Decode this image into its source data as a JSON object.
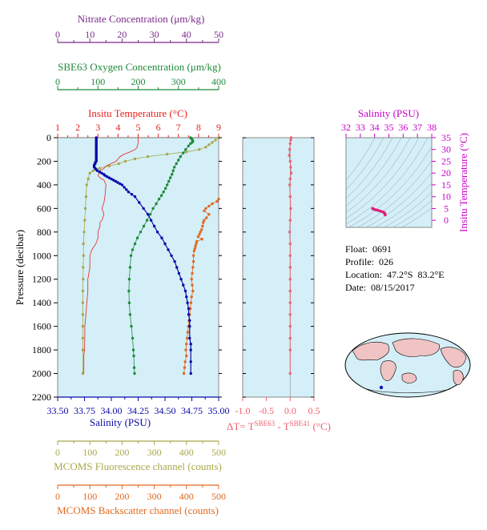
{
  "colors": {
    "nitrate": "#7a2a8a",
    "oxygen": "#1f8a3a",
    "temperature": "#e8221c",
    "salinity": "#0a0aa8",
    "fluorescence": "#a8a84a",
    "backscatter": "#e06a20",
    "delta": "#f06070",
    "ts_axis": "#cc00cc",
    "panel_bg": "#d4eff8"
  },
  "icons": [
    "world-map"
  ],
  "float_info": {
    "float": "Float:  0691",
    "profile": "Profile:  026",
    "location": "Location:  47.2°S  83.2°E",
    "date": "Date:  08/15/2017"
  },
  "chart_data": [
    {
      "type": "line",
      "panel": "main-profile",
      "y_axis": {
        "label": "Pressure (decibar)",
        "range": [
          0,
          2200
        ],
        "ticks": [
          0,
          200,
          400,
          600,
          800,
          1000,
          1200,
          1400,
          1600,
          1800,
          2000,
          2200
        ]
      },
      "axes": {
        "nitrate": {
          "label": "Nitrate Concentration (μm/kg)",
          "range": [
            0,
            50
          ],
          "ticks": [
            0,
            10,
            20,
            30,
            40,
            50
          ]
        },
        "oxygen": {
          "label": "SBE63 Oxygen Concentration (μm/kg)",
          "range": [
            0,
            400
          ],
          "ticks": [
            0,
            100,
            200,
            300,
            400
          ]
        },
        "temperature": {
          "label": "Insitu Temperature (°C)",
          "range": [
            1,
            9
          ],
          "ticks": [
            1,
            2,
            3,
            4,
            5,
            6,
            7,
            8,
            9
          ]
        },
        "salinity": {
          "label": "Salinity (PSU)",
          "range": [
            33.5,
            35.0
          ],
          "ticks": [
            "33.50",
            "33.75",
            "34.00",
            "34.25",
            "34.50",
            "34.75",
            "35.00"
          ]
        },
        "fluorescence": {
          "label": "MCOMS Fluorescence channel (counts)",
          "range": [
            0,
            500
          ],
          "ticks": [
            0,
            100,
            200,
            300,
            400,
            500
          ]
        },
        "backscatter": {
          "label": "MCOMS Backscatter channel (counts)",
          "range": [
            0,
            500
          ],
          "ticks": [
            0,
            100,
            200,
            300,
            400,
            500
          ]
        }
      },
      "series": [
        {
          "name": "Salinity (PSU)",
          "axis": "salinity",
          "markers": true,
          "x": [
            33.86,
            33.86,
            33.86,
            33.86,
            33.86,
            33.86,
            33.86,
            33.86,
            33.86,
            33.86,
            33.86,
            33.86,
            33.86,
            33.86,
            33.86,
            33.86,
            33.86,
            33.86,
            33.86,
            33.86,
            33.86,
            33.85,
            33.85,
            33.84,
            33.84,
            33.84,
            33.85,
            33.86,
            33.87,
            33.89,
            33.91,
            33.93,
            33.94,
            33.96,
            33.98,
            34.0,
            34.02,
            34.04,
            34.06,
            34.08,
            34.1,
            34.12,
            34.14,
            34.16,
            34.19,
            34.22,
            34.26,
            34.3,
            34.34,
            34.37,
            34.4,
            34.43,
            34.47,
            34.5,
            34.53,
            34.56,
            34.59,
            34.61,
            34.63,
            34.65,
            34.67,
            34.69,
            34.7,
            34.71,
            34.72,
            34.72,
            34.73,
            34.73,
            34.73,
            34.74,
            34.74,
            34.74,
            34.74
          ],
          "y": [
            0,
            10,
            20,
            30,
            40,
            50,
            60,
            70,
            80,
            90,
            100,
            110,
            120,
            130,
            140,
            150,
            160,
            170,
            180,
            190,
            200,
            210,
            220,
            230,
            240,
            250,
            260,
            270,
            280,
            290,
            300,
            310,
            320,
            330,
            340,
            350,
            360,
            370,
            380,
            390,
            400,
            420,
            440,
            460,
            480,
            500,
            550,
            600,
            650,
            700,
            750,
            800,
            850,
            900,
            950,
            1000,
            1050,
            1100,
            1150,
            1200,
            1250,
            1300,
            1350,
            1400,
            1450,
            1500,
            1550,
            1600,
            1700,
            1750,
            1800,
            1900,
            2000
          ]
        },
        {
          "name": "Insitu Temperature (°C)",
          "axis": "temperature",
          "markers": false,
          "x": [
            5.0,
            5.0,
            4.98,
            4.95,
            4.85,
            4.6,
            4.3,
            4.1,
            4.0,
            3.9,
            3.65,
            3.4,
            3.3,
            3.1,
            3.05,
            3.0,
            3.1,
            3.3,
            3.4,
            3.35,
            3.3,
            3.2,
            3.3,
            3.2,
            3.1,
            3.1,
            3.0,
            3.0,
            2.9,
            2.7,
            2.6,
            2.6,
            2.5,
            2.5,
            2.45,
            2.4,
            2.35,
            2.35,
            2.33,
            2.3,
            2.3,
            2.3,
            2.3
          ],
          "y": [
            0,
            40,
            60,
            80,
            100,
            120,
            140,
            160,
            180,
            200,
            220,
            240,
            260,
            280,
            300,
            320,
            340,
            360,
            400,
            500,
            550,
            600,
            650,
            700,
            720,
            750,
            800,
            850,
            900,
            950,
            1000,
            1100,
            1200,
            1300,
            1400,
            1500,
            1600,
            1700,
            1800,
            1850,
            1900,
            1950,
            2000
          ]
        },
        {
          "name": "SBE63 Oxygen Concentration (μm/kg)",
          "axis": "oxygen",
          "markers": true,
          "x": [
            330,
            333,
            335,
            336,
            334,
            330,
            325,
            318,
            312,
            305,
            300,
            295,
            290,
            287,
            284,
            280,
            276,
            272,
            268,
            263,
            258,
            252,
            245,
            237,
            230,
            222,
            214,
            206,
            198,
            192,
            186,
            182,
            180,
            178,
            177,
            178,
            180,
            183,
            186,
            188,
            189,
            190,
            191
          ],
          "y": [
            0,
            10,
            20,
            30,
            40,
            50,
            70,
            100,
            130,
            160,
            190,
            220,
            250,
            280,
            310,
            340,
            370,
            400,
            430,
            460,
            490,
            520,
            560,
            600,
            650,
            700,
            750,
            800,
            850,
            900,
            950,
            1000,
            1100,
            1200,
            1300,
            1400,
            1500,
            1600,
            1700,
            1800,
            1850,
            1950,
            2000
          ]
        },
        {
          "name": "Nitrate Concentration (μm/kg)",
          "axis": "nitrate",
          "markers": false,
          "x": [],
          "y": []
        },
        {
          "name": "MCOMS Fluorescence channel (counts)",
          "axis": "fluorescence",
          "markers": true,
          "x": [
            500,
            490,
            480,
            470,
            460,
            440,
            400,
            340,
            280,
            240,
            210,
            190,
            160,
            130,
            110,
            100,
            95,
            90,
            88,
            86,
            84,
            82,
            80,
            80,
            79,
            79,
            78,
            78,
            78,
            78,
            78,
            78,
            78
          ],
          "y": [
            0,
            20,
            40,
            60,
            80,
            100,
            120,
            140,
            160,
            180,
            200,
            220,
            240,
            260,
            280,
            300,
            350,
            400,
            500,
            600,
            700,
            800,
            900,
            1000,
            1100,
            1200,
            1300,
            1400,
            1500,
            1600,
            1700,
            1800,
            2000
          ]
        },
        {
          "name": "MCOMS Backscatter channel (counts)",
          "axis": "backscatter",
          "markers": true,
          "x": [
            500,
            495,
            480,
            470,
            460,
            455,
            470,
            462,
            455,
            452,
            450,
            447,
            443,
            440,
            436,
            448,
            432,
            430,
            428,
            426,
            424,
            422,
            422,
            420,
            418,
            416,
            418,
            420,
            416,
            414,
            412,
            410,
            408,
            406,
            404,
            402,
            400,
            398,
            400,
            396,
            394,
            392
          ],
          "y": [
            520,
            540,
            560,
            580,
            600,
            620,
            650,
            680,
            700,
            720,
            750,
            780,
            800,
            820,
            840,
            860,
            880,
            900,
            920,
            940,
            960,
            1000,
            1050,
            1100,
            1150,
            1200,
            1250,
            1300,
            1350,
            1400,
            1450,
            1500,
            1550,
            1600,
            1650,
            1700,
            1750,
            1800,
            1850,
            1900,
            1950,
            2000
          ]
        }
      ]
    },
    {
      "type": "line",
      "panel": "delta-temperature",
      "xlabel_parts": [
        "ΔT= T",
        "SBE63",
        " - T",
        "SBE41",
        " (°C)"
      ],
      "xlim": [
        -1.0,
        0.5
      ],
      "x_ticks": [
        "-1.0",
        "-0.5",
        "0.0",
        "0.5"
      ],
      "ylim": [
        0,
        2200
      ],
      "series": [
        {
          "name": "ΔT",
          "markers": true,
          "x": [
            0.02,
            0.01,
            0.0,
            -0.01,
            -0.02,
            0.0,
            0.01,
            0.02,
            0.0,
            -0.01,
            0.0,
            0.01,
            0.0,
            -0.01,
            0.0,
            0.0,
            0.0,
            0.0,
            0.0,
            0.0,
            0.0,
            0.0,
            0.0,
            0.0,
            0.0
          ],
          "y": [
            0,
            20,
            50,
            100,
            150,
            200,
            250,
            300,
            350,
            400,
            500,
            600,
            700,
            800,
            900,
            1000,
            1100,
            1200,
            1300,
            1400,
            1500,
            1600,
            1700,
            1800,
            2000
          ]
        }
      ]
    },
    {
      "type": "scatter",
      "panel": "ts-diagram",
      "title": "Salinity (PSU)",
      "ylabel": "Insitu Temperature (°C)",
      "xlim": [
        32,
        38
      ],
      "x_ticks": [
        32,
        33,
        34,
        35,
        36,
        37,
        38
      ],
      "ylim": [
        -3,
        35
      ],
      "y_ticks": [
        0,
        5,
        10,
        15,
        20,
        25,
        30,
        35
      ],
      "series": [
        {
          "name": "T-S",
          "x": [
            34.74,
            34.73,
            34.72,
            34.7,
            34.65,
            34.55,
            34.4,
            34.25,
            34.1,
            33.95,
            33.88,
            33.86,
            33.86
          ],
          "y": [
            2.3,
            2.5,
            2.7,
            3.0,
            3.3,
            3.6,
            3.9,
            4.2,
            4.4,
            4.7,
            4.9,
            5.0,
            5.0
          ]
        }
      ]
    }
  ]
}
